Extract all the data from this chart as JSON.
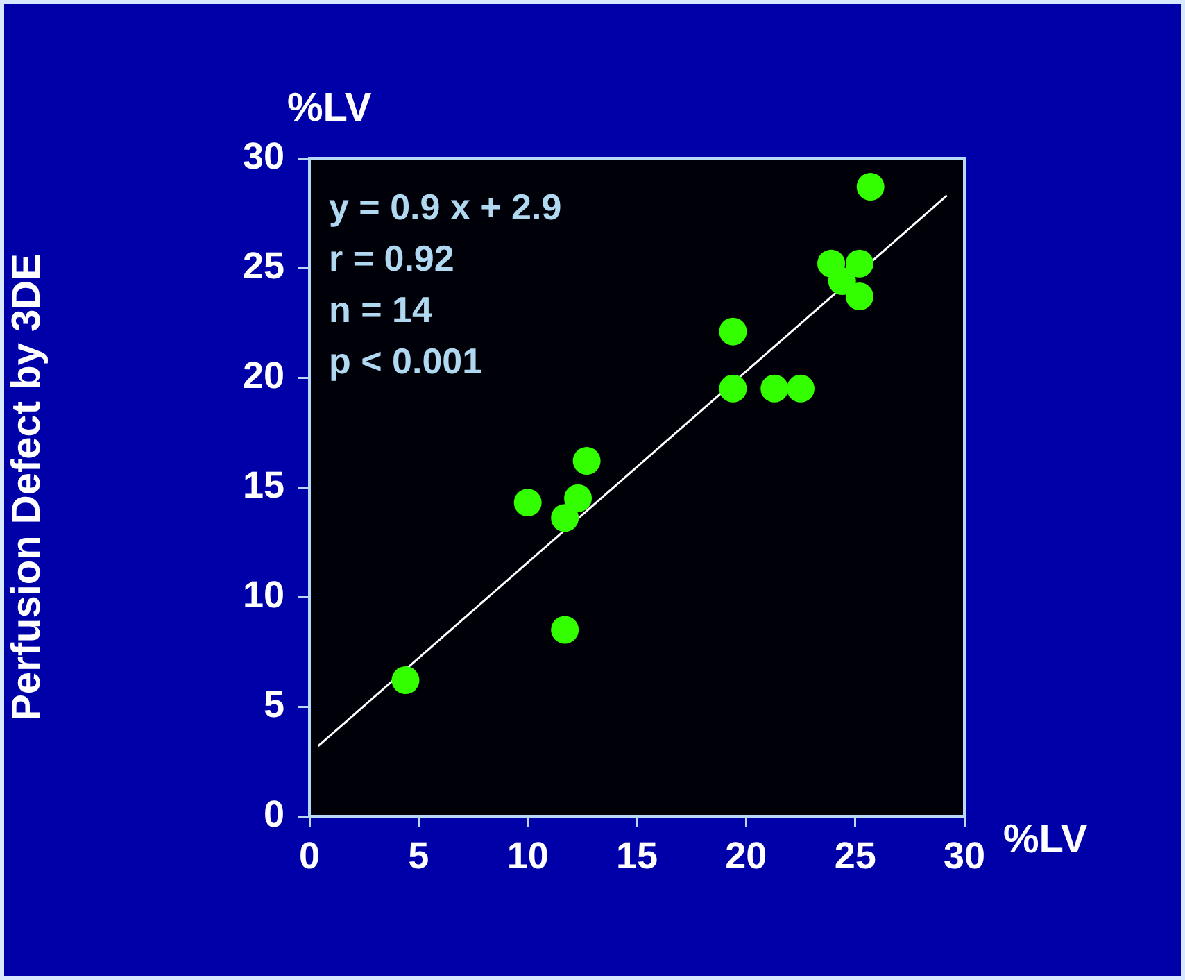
{
  "chart_data": {
    "type": "scatter",
    "xlabel": "%LV",
    "ylabel": "Perfusion Defect by 3DE",
    "annotations": [
      "%LV",
      "y = 0.9 x + 2.9",
      "r = 0.92",
      "n = 14",
      "p < 0.001"
    ],
    "xlim": [
      0,
      30
    ],
    "ylim": [
      0,
      30
    ],
    "xticks": [
      0,
      5,
      10,
      15,
      20,
      25,
      30
    ],
    "yticks": [
      0,
      5,
      10,
      15,
      20,
      25,
      30
    ],
    "grid": false,
    "legend": false,
    "series": [
      {
        "marker": "circle",
        "color": "#33ff00",
        "x": [
          4.4,
          10.0,
          11.7,
          12.3,
          12.7,
          11.7,
          19.4,
          19.4,
          21.3,
          22.5,
          23.9,
          24.4,
          25.2,
          25.2,
          25.7
        ],
        "values": [
          6.2,
          14.3,
          13.6,
          14.5,
          16.2,
          8.5,
          22.1,
          19.5,
          19.5,
          19.5,
          25.2,
          24.4,
          25.2,
          23.7,
          28.7
        ]
      },
      {
        "type": "line",
        "marker": "none",
        "color": "#ffffff",
        "x": [
          0.4,
          29.2
        ],
        "values": [
          3.2,
          28.3
        ]
      }
    ]
  }
}
